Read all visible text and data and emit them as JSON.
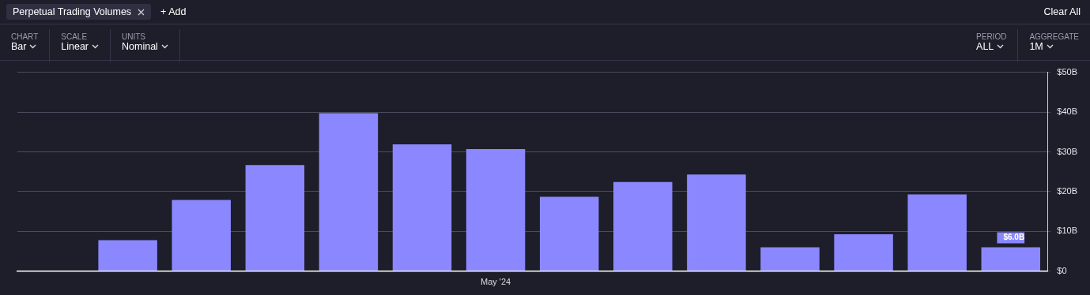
{
  "chart_data": {
    "type": "bar",
    "title": "Perpetual Trading Volumes",
    "annotations": [
      "+ Add",
      "Clear All",
      "CHART",
      "Bar",
      "SCALE",
      "Linear",
      "UNITS",
      "Nominal",
      "PERIOD",
      "ALL",
      "AGGREGATE",
      "1M"
    ],
    "categories": [
      null,
      null,
      null,
      null,
      null,
      null,
      "May '24",
      null,
      null,
      null,
      null,
      null,
      null,
      null
    ],
    "values": [
      null,
      7.8,
      17.9,
      26.7,
      39.7,
      31.9,
      30.7,
      18.7,
      22.4,
      24.3,
      6.0,
      9.3,
      19.3,
      6.0
    ],
    "value_labels": [
      null,
      null,
      null,
      null,
      null,
      null,
      null,
      null,
      null,
      null,
      null,
      null,
      null,
      "$6.0B"
    ],
    "color": "#8b88ff",
    "ylim": [
      0,
      50
    ],
    "yticks": [
      {
        "value": 0,
        "label": "$0"
      },
      {
        "value": 10,
        "label": "$10B"
      },
      {
        "value": 20,
        "label": "$20B"
      },
      {
        "value": 30,
        "label": "$30B"
      },
      {
        "value": 40,
        "label": "$40B"
      },
      {
        "value": 50,
        "label": "$50B"
      }
    ],
    "grid": "y",
    "legend": false
  }
}
